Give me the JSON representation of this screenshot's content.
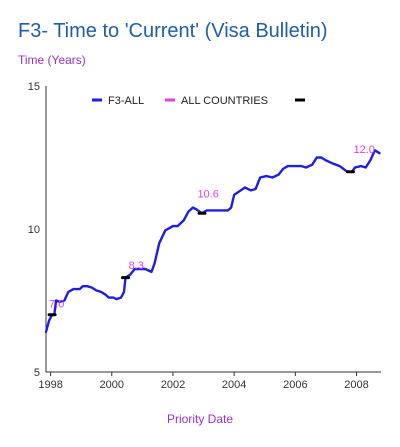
{
  "chart_data": {
    "type": "line",
    "title": "F3- Time to 'Current' (Visa Bulletin)",
    "ylabel": "Time (Years)",
    "xlabel": "Priority Date",
    "xlim": [
      1997.85,
      2008.8
    ],
    "ylim": [
      5,
      15
    ],
    "x_ticks": [
      1998,
      2000,
      2002,
      2004,
      2006,
      2008
    ],
    "y_ticks": [
      5,
      10,
      15
    ],
    "grid": false,
    "legend_position": "top",
    "legend": [
      "F3-ALL",
      "ALL COUNTRIES",
      ""
    ],
    "series": [
      {
        "name": "F3-ALL",
        "color": "#1e1ee8",
        "points": [
          [
            1997.85,
            6.4
          ],
          [
            1997.95,
            6.8
          ],
          [
            1998.05,
            7.0
          ],
          [
            1998.12,
            7.0
          ],
          [
            1998.18,
            7.5
          ],
          [
            1998.3,
            7.45
          ],
          [
            1998.45,
            7.5
          ],
          [
            1998.58,
            7.8
          ],
          [
            1998.75,
            7.9
          ],
          [
            1998.95,
            7.9
          ],
          [
            1999.05,
            8.0
          ],
          [
            1999.2,
            8.0
          ],
          [
            1999.35,
            7.95
          ],
          [
            1999.5,
            7.85
          ],
          [
            1999.65,
            7.8
          ],
          [
            1999.8,
            7.7
          ],
          [
            1999.9,
            7.6
          ],
          [
            2000.05,
            7.6
          ],
          [
            2000.15,
            7.55
          ],
          [
            2000.3,
            7.6
          ],
          [
            2000.4,
            7.8
          ],
          [
            2000.45,
            8.3
          ],
          [
            2000.6,
            8.4
          ],
          [
            2000.75,
            8.6
          ],
          [
            2000.9,
            8.6
          ],
          [
            2001.1,
            8.6
          ],
          [
            2001.2,
            8.55
          ],
          [
            2001.3,
            8.5
          ],
          [
            2001.4,
            8.8
          ],
          [
            2001.55,
            9.5
          ],
          [
            2001.75,
            9.95
          ],
          [
            2002.0,
            10.1
          ],
          [
            2002.15,
            10.1
          ],
          [
            2002.35,
            10.3
          ],
          [
            2002.5,
            10.6
          ],
          [
            2002.65,
            10.75
          ],
          [
            2002.75,
            10.7
          ],
          [
            2002.95,
            10.55
          ],
          [
            2003.1,
            10.65
          ],
          [
            2003.3,
            10.65
          ],
          [
            2003.6,
            10.65
          ],
          [
            2003.8,
            10.65
          ],
          [
            2003.9,
            10.75
          ],
          [
            2004.0,
            11.2
          ],
          [
            2004.15,
            11.3
          ],
          [
            2004.35,
            11.45
          ],
          [
            2004.55,
            11.35
          ],
          [
            2004.7,
            11.4
          ],
          [
            2004.85,
            11.8
          ],
          [
            2005.05,
            11.85
          ],
          [
            2005.25,
            11.8
          ],
          [
            2005.45,
            11.9
          ],
          [
            2005.6,
            12.1
          ],
          [
            2005.75,
            12.2
          ],
          [
            2005.95,
            12.2
          ],
          [
            2006.2,
            12.2
          ],
          [
            2006.35,
            12.15
          ],
          [
            2006.55,
            12.25
          ],
          [
            2006.7,
            12.5
          ],
          [
            2006.85,
            12.5
          ],
          [
            2007.0,
            12.4
          ],
          [
            2007.2,
            12.3
          ],
          [
            2007.45,
            12.2
          ],
          [
            2007.7,
            12.0
          ],
          [
            2007.85,
            12.0
          ],
          [
            2007.95,
            12.15
          ],
          [
            2008.15,
            12.2
          ],
          [
            2008.3,
            12.15
          ],
          [
            2008.45,
            12.4
          ],
          [
            2008.6,
            12.75
          ],
          [
            2008.75,
            12.65
          ]
        ]
      }
    ],
    "black_markers": [
      [
        1998.05,
        7.0
      ],
      [
        2000.45,
        8.3
      ],
      [
        2002.95,
        10.55
      ],
      [
        2007.8,
        12.0
      ]
    ],
    "annotations": [
      {
        "text": "7.0",
        "x": 1997.95,
        "y": 7.25
      },
      {
        "text": "8.3",
        "x": 2000.55,
        "y": 8.6
      },
      {
        "text": "10.6",
        "x": 2002.8,
        "y": 11.1
      },
      {
        "text": "12.0",
        "x": 2007.9,
        "y": 12.65
      }
    ]
  },
  "legend_colors": [
    "#1e1ee8",
    "#e040e8",
    "#000000"
  ]
}
